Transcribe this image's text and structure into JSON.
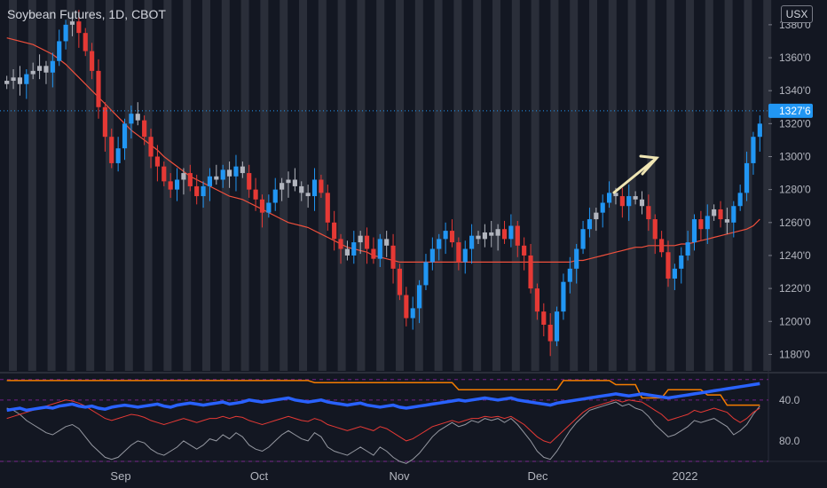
{
  "header": {
    "title": "Soybean Futures, 1D, CBOT",
    "currency": "USX"
  },
  "price_axis": {
    "ticks": [
      "1380'0",
      "1360'0",
      "1340'0",
      "1320'0",
      "1300'0",
      "1280'0",
      "1260'0",
      "1240'0",
      "1220'0",
      "1200'0",
      "1180'0"
    ],
    "last_price_label": "1327'6"
  },
  "indicator_axis": {
    "ticks": [
      "80.0",
      "40.0"
    ]
  },
  "time_axis": {
    "labels": [
      "Sep",
      "Oct",
      "Nov",
      "Dec",
      "2022"
    ]
  },
  "chart_data": {
    "type": "candlestick",
    "price_range": [
      1170,
      1395
    ],
    "price_ticks": [
      1180,
      1200,
      1220,
      1240,
      1260,
      1280,
      1300,
      1320,
      1340,
      1360,
      1380
    ],
    "last_price": 1327.75,
    "colors": {
      "up": "#2196f3",
      "down": "#e53935",
      "neutral": "#b2b5be",
      "ma": "#f0503c",
      "stripe": "#2a2e39",
      "arrow": "#f0e6b4",
      "indicator_blue": "#2962ff",
      "indicator_orange": "#f57c00",
      "indicator_red": "#e53935",
      "indicator_grey": "#9598a1"
    },
    "closes": [
      1346,
      1348,
      1344,
      1350,
      1352,
      1355,
      1351,
      1358,
      1370,
      1380,
      1382,
      1375,
      1364,
      1352,
      1330,
      1312,
      1296,
      1305,
      1320,
      1326,
      1322,
      1312,
      1300,
      1294,
      1285,
      1280,
      1286,
      1290,
      1282,
      1276,
      1282,
      1288,
      1286,
      1292,
      1288,
      1294,
      1290,
      1280,
      1274,
      1266,
      1272,
      1280,
      1284,
      1286,
      1282,
      1278,
      1276,
      1286,
      1278,
      1260,
      1250,
      1244,
      1240,
      1248,
      1252,
      1244,
      1238,
      1250,
      1246,
      1232,
      1216,
      1202,
      1208,
      1222,
      1236,
      1244,
      1250,
      1255,
      1248,
      1236,
      1244,
      1252,
      1250,
      1254,
      1252,
      1256,
      1250,
      1258,
      1246,
      1240,
      1220,
      1206,
      1198,
      1188,
      1206,
      1224,
      1232,
      1244,
      1256,
      1262,
      1266,
      1272,
      1278,
      1276,
      1270,
      1276,
      1274,
      1270,
      1262,
      1250,
      1242,
      1226,
      1232,
      1240,
      1248,
      1262,
      1256,
      1264,
      1268,
      1262,
      1260,
      1270,
      1278,
      1296,
      1312,
      1320
    ],
    "ma": [
      1372,
      1371,
      1370,
      1369,
      1368,
      1366,
      1364,
      1362,
      1359,
      1356,
      1352,
      1348,
      1344,
      1340,
      1336,
      1332,
      1328,
      1324,
      1320,
      1316,
      1313,
      1310,
      1307,
      1304,
      1300,
      1297,
      1294,
      1291,
      1288,
      1286,
      1284,
      1282,
      1280,
      1278,
      1276,
      1275,
      1274,
      1272,
      1270,
      1268,
      1266,
      1264,
      1262,
      1260,
      1259,
      1258,
      1257,
      1255,
      1253,
      1251,
      1249,
      1247,
      1245,
      1244,
      1243,
      1242,
      1240,
      1239,
      1238,
      1237,
      1236,
      1236,
      1236,
      1236,
      1236,
      1236,
      1236,
      1236,
      1236,
      1236,
      1236,
      1236,
      1236,
      1236,
      1236,
      1236,
      1236,
      1236,
      1236,
      1236,
      1236,
      1236,
      1236,
      1236,
      1236,
      1236,
      1236,
      1237,
      1237,
      1238,
      1239,
      1240,
      1241,
      1242,
      1243,
      1244,
      1245,
      1245,
      1246,
      1246,
      1246,
      1246,
      1246,
      1247,
      1247,
      1248,
      1249,
      1250,
      1251,
      1252,
      1253,
      1254,
      1255,
      1256,
      1258,
      1262
    ],
    "oscillator_range": [
      20,
      105
    ],
    "oscillator_ticks": [
      40,
      80
    ],
    "oscillator_levels": [
      20,
      80,
      100
    ],
    "osc_blue": [
      70,
      71,
      72,
      70,
      71,
      72,
      73,
      72,
      74,
      75,
      76,
      74,
      73,
      74,
      72,
      71,
      73,
      74,
      75,
      74,
      73,
      74,
      75,
      76,
      74,
      73,
      75,
      76,
      77,
      76,
      75,
      76,
      77,
      78,
      76,
      77,
      78,
      80,
      79,
      78,
      79,
      80,
      81,
      82,
      80,
      79,
      78,
      79,
      80,
      78,
      77,
      76,
      75,
      76,
      77,
      75,
      74,
      73,
      74,
      75,
      73,
      72,
      73,
      74,
      75,
      76,
      77,
      78,
      79,
      80,
      79,
      80,
      81,
      82,
      81,
      80,
      81,
      82,
      80,
      79,
      78,
      77,
      76,
      75,
      77,
      78,
      79,
      80,
      81,
      82,
      83,
      84,
      85,
      86,
      85,
      84,
      85,
      86,
      85,
      84,
      83,
      82,
      83,
      84,
      85,
      86,
      87,
      88,
      89,
      90,
      91,
      92,
      93,
      94,
      95,
      96
    ],
    "osc_orange": [
      99,
      99,
      99,
      99,
      99,
      99,
      99,
      99,
      99,
      99,
      99,
      99,
      99,
      99,
      99,
      99,
      99,
      99,
      99,
      99,
      99,
      99,
      99,
      99,
      99,
      99,
      99,
      99,
      99,
      99,
      99,
      99,
      99,
      99,
      99,
      99,
      99,
      99,
      99,
      99,
      99,
      99,
      99,
      99,
      99,
      99,
      99,
      97,
      97,
      97,
      97,
      97,
      97,
      97,
      97,
      97,
      97,
      97,
      97,
      97,
      97,
      97,
      97,
      97,
      97,
      97,
      97,
      97,
      97,
      90,
      90,
      90,
      90,
      90,
      90,
      90,
      90,
      90,
      90,
      90,
      90,
      90,
      90,
      90,
      90,
      99,
      99,
      99,
      99,
      99,
      99,
      99,
      99,
      95,
      95,
      95,
      95,
      82,
      82,
      82,
      82,
      90,
      90,
      90,
      90,
      90,
      90,
      85,
      85,
      85,
      75,
      75,
      75,
      75,
      75,
      75
    ],
    "osc_red": [
      62,
      64,
      66,
      68,
      70,
      72,
      74,
      76,
      78,
      80,
      79,
      77,
      74,
      70,
      66,
      62,
      60,
      62,
      64,
      66,
      65,
      63,
      60,
      58,
      56,
      58,
      60,
      62,
      60,
      58,
      60,
      62,
      62,
      64,
      62,
      64,
      63,
      60,
      58,
      56,
      58,
      60,
      62,
      64,
      62,
      60,
      59,
      62,
      60,
      56,
      54,
      52,
      50,
      52,
      54,
      52,
      50,
      54,
      52,
      48,
      44,
      40,
      42,
      46,
      50,
      54,
      56,
      58,
      60,
      58,
      60,
      62,
      62,
      64,
      63,
      64,
      62,
      64,
      60,
      56,
      50,
      44,
      40,
      38,
      44,
      50,
      56,
      62,
      68,
      72,
      74,
      76,
      78,
      80,
      78,
      80,
      79,
      78,
      74,
      70,
      66,
      60,
      62,
      64,
      66,
      70,
      68,
      70,
      72,
      70,
      68,
      62,
      58,
      62,
      68,
      72
    ],
    "osc_grey": [
      72,
      70,
      66,
      60,
      56,
      52,
      48,
      46,
      50,
      54,
      56,
      52,
      44,
      36,
      30,
      24,
      22,
      24,
      30,
      36,
      40,
      38,
      32,
      28,
      26,
      30,
      34,
      40,
      36,
      32,
      36,
      42,
      40,
      46,
      42,
      48,
      44,
      36,
      32,
      30,
      34,
      40,
      46,
      50,
      46,
      42,
      40,
      48,
      44,
      34,
      30,
      28,
      26,
      30,
      34,
      30,
      26,
      34,
      30,
      24,
      20,
      18,
      22,
      28,
      36,
      44,
      50,
      54,
      58,
      54,
      56,
      60,
      58,
      62,
      60,
      62,
      58,
      62,
      56,
      48,
      40,
      30,
      24,
      22,
      30,
      40,
      50,
      58,
      64,
      70,
      72,
      74,
      76,
      78,
      74,
      76,
      72,
      70,
      64,
      56,
      50,
      44,
      46,
      50,
      54,
      60,
      58,
      60,
      62,
      58,
      54,
      46,
      50,
      56,
      66,
      74
    ]
  }
}
